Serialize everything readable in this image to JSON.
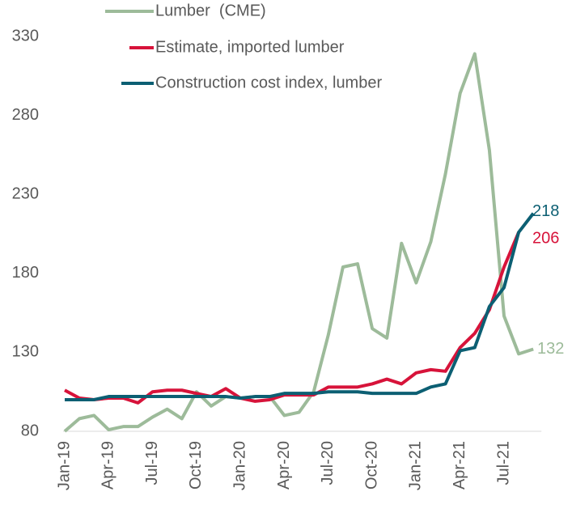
{
  "chart_data": {
    "type": "line",
    "categories": [
      "Jan-19",
      null,
      null,
      "Apr-19",
      null,
      null,
      "Jul-19",
      null,
      null,
      "Oct-19",
      null,
      null,
      "Jan-20",
      null,
      null,
      "Apr-20",
      null,
      null,
      "Jul-20",
      null,
      null,
      "Oct-20",
      null,
      null,
      "Jan-21",
      null,
      null,
      "Apr-21",
      null,
      null,
      "Jul-21",
      null,
      null
    ],
    "series": [
      {
        "name": "Lumber  (CME)",
        "color": "#9dbb9a",
        "values": [
          80,
          88,
          90,
          81,
          83,
          83,
          89,
          94,
          88,
          105,
          96,
          102,
          101,
          102,
          102,
          90,
          92,
          105,
          141,
          184,
          186,
          145,
          139,
          199,
          174,
          200,
          243,
          294,
          319,
          258,
          153,
          129,
          132
        ]
      },
      {
        "name": "Estimate, imported lumber",
        "color": "#d7133a",
        "values": [
          106,
          101,
          100,
          101,
          101,
          98,
          105,
          106,
          106,
          104,
          102,
          107,
          101,
          99,
          100,
          103,
          103,
          103,
          108,
          108,
          108,
          110,
          113,
          110,
          117,
          119,
          118,
          133,
          142,
          157,
          184,
          206,
          null
        ]
      },
      {
        "name": "Construction cost index, lumber",
        "color": "#0c5f73",
        "values": [
          100,
          100,
          100,
          102,
          102,
          102,
          102,
          102,
          102,
          102,
          102,
          102,
          101,
          102,
          102,
          104,
          104,
          104,
          105,
          105,
          105,
          104,
          104,
          104,
          104,
          108,
          110,
          131,
          133,
          159,
          171,
          206,
          218
        ]
      }
    ],
    "ylim": [
      80,
      340
    ],
    "yticks": [
      80,
      130,
      180,
      230,
      280,
      330
    ],
    "grid": false
  }
}
